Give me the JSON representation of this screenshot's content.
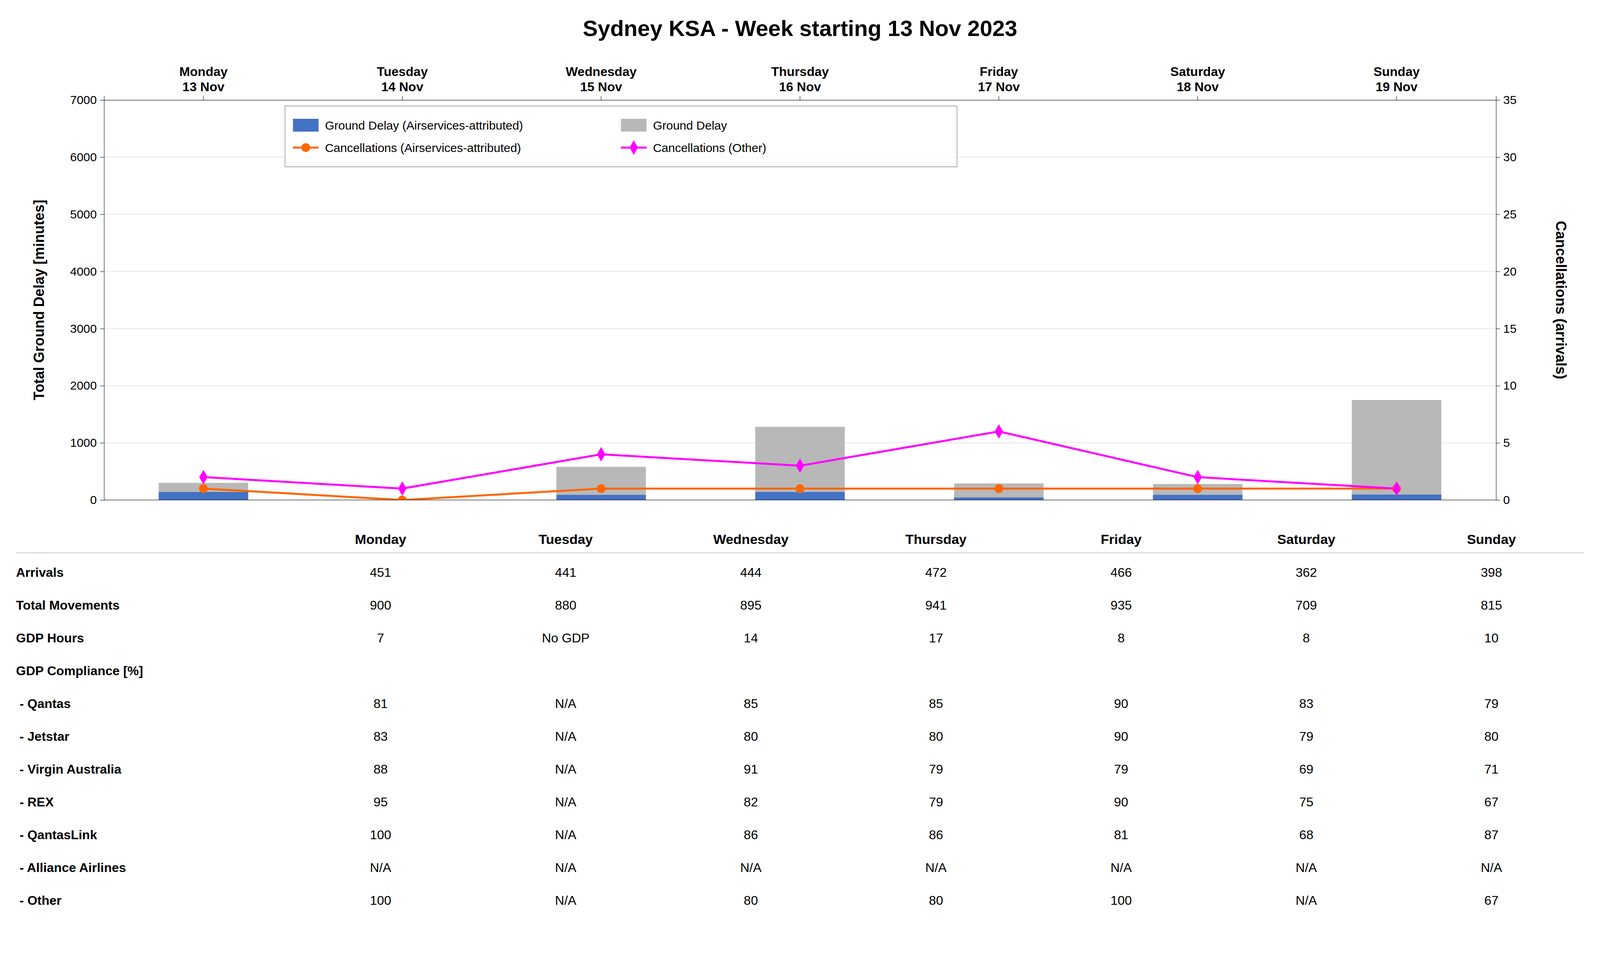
{
  "chart_data": {
    "type": "bar",
    "title": "Sydney KSA - Week starting 13 Nov 2023",
    "categories": [
      "Monday\n13 Nov",
      "Tuesday\n14 Nov",
      "Wednesday\n15 Nov",
      "Thursday\n16 Nov",
      "Friday\n17 Nov",
      "Saturday\n18 Nov",
      "Sunday\n19 Nov"
    ],
    "series": [
      {
        "name": "Ground Delay (Airservices-attributed)",
        "type": "bar",
        "color": "#4472c4",
        "values": [
          140,
          0,
          90,
          140,
          45,
          90,
          95
        ]
      },
      {
        "name": "Cancellations (Airservices-attributed)",
        "type": "line",
        "axis": "y2",
        "color": "#ff6600",
        "marker": "circle",
        "values": [
          1,
          0,
          1,
          1,
          1,
          1,
          1
        ]
      },
      {
        "name": "Ground Delay",
        "type": "bar",
        "color": "#b8b8b8",
        "values": [
          300,
          0,
          580,
          1280,
          290,
          280,
          1750
        ]
      },
      {
        "name": "Cancellations (Other)",
        "type": "line",
        "axis": "y2",
        "color": "#ff00ff",
        "marker": "diamond",
        "values": [
          2,
          1,
          4,
          3,
          6,
          2,
          1
        ]
      }
    ],
    "stacked": false,
    "ylabel": "Total Ground Delay [minutes]",
    "y2label": "Cancellations (arrivals)",
    "ylim": [
      0,
      7000
    ],
    "yticks": [
      0,
      1000,
      2000,
      3000,
      4000,
      5000,
      6000,
      7000
    ],
    "y2lim": [
      0,
      35
    ],
    "y2ticks": [
      0,
      5,
      10,
      15,
      20,
      25,
      30,
      35
    ],
    "grid": true,
    "legend": "upper left",
    "table": {
      "columns": [
        "Monday",
        "Tuesday",
        "Wednesday",
        "Thursday",
        "Friday",
        "Saturday",
        "Sunday"
      ],
      "rows": [
        [
          "Arrivals",
          "451",
          "441",
          "444",
          "472",
          "466",
          "362",
          "398"
        ],
        [
          "Total Movements",
          "900",
          "880",
          "895",
          "941",
          "935",
          "709",
          "815"
        ],
        [
          "GDP Hours",
          "7",
          "No GDP",
          "14",
          "17",
          "8",
          "8",
          "10"
        ],
        [
          "GDP Compliance [%]",
          null,
          null,
          null,
          null,
          null,
          null,
          null
        ],
        [
          " - Qantas",
          "81",
          "N/A",
          "85",
          "85",
          "90",
          "83",
          "79"
        ],
        [
          " - Jetstar",
          "83",
          "N/A",
          "80",
          "80",
          "90",
          "79",
          "80"
        ],
        [
          " - Virgin Australia",
          "88",
          "N/A",
          "91",
          "79",
          "79",
          "69",
          "71"
        ],
        [
          " - REX",
          "95",
          "N/A",
          "82",
          "79",
          "90",
          "75",
          "67"
        ],
        [
          " - QantasLink",
          "100",
          "N/A",
          "86",
          "86",
          "81",
          "68",
          "87"
        ],
        [
          " - Alliance Airlines",
          "N/A",
          "N/A",
          "N/A",
          "N/A",
          "N/A",
          "N/A",
          "N/A"
        ],
        [
          " - Other",
          "100",
          "N/A",
          "80",
          "80",
          "100",
          "N/A",
          "67"
        ]
      ]
    }
  }
}
